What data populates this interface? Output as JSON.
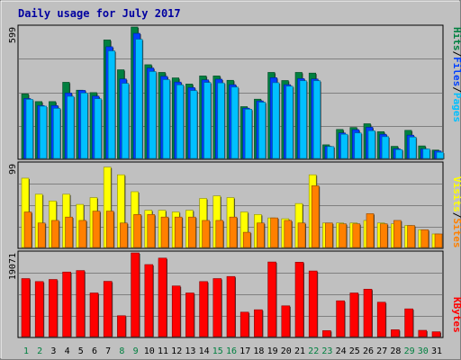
{
  "chart_data": [
    {
      "type": "bar",
      "title": "Daily usage for July 2017",
      "categories": [
        "1",
        "2",
        "3",
        "4",
        "5",
        "6",
        "7",
        "8",
        "9",
        "10",
        "11",
        "12",
        "13",
        "14",
        "15",
        "16",
        "17",
        "18",
        "19",
        "20",
        "21",
        "22",
        "23",
        "24",
        "25",
        "26",
        "27",
        "28",
        "29",
        "30",
        "31"
      ],
      "weekend_days": [
        "1",
        "2",
        "8",
        "9",
        "15",
        "16",
        "22",
        "23",
        "29",
        "30"
      ],
      "ylabel": [
        "Pages",
        "Files",
        "Hits"
      ],
      "ymax_label": "599",
      "ylim": [
        0,
        599
      ],
      "series": [
        {
          "name": "Hits",
          "color": "#008040",
          "values": [
            294,
            259,
            259,
            347,
            311,
            300,
            540,
            404,
            599,
            427,
            392,
            367,
            339,
            376,
            376,
            356,
            236,
            270,
            392,
            355,
            392,
            389,
            62,
            132,
            141,
            158,
            122,
            55,
            128,
            57,
            38
          ]
        },
        {
          "name": "Files",
          "color": "#0040ff",
          "values": [
            273,
            241,
            241,
            298,
            310,
            284,
            509,
            362,
            570,
            412,
            374,
            348,
            323,
            358,
            361,
            336,
            229,
            262,
            368,
            336,
            364,
            362,
            55,
            116,
            131,
            142,
            110,
            44,
            106,
            43,
            34
          ]
        },
        {
          "name": "Pages",
          "color": "#00c0ff",
          "values": [
            269,
            238,
            228,
            283,
            298,
            272,
            490,
            342,
            543,
            396,
            359,
            335,
            309,
            346,
            344,
            325,
            224,
            256,
            345,
            329,
            354,
            354,
            54,
            110,
            116,
            126,
            99,
            40,
            97,
            43,
            28
          ]
        }
      ]
    },
    {
      "type": "bar",
      "categories": [
        "1",
        "2",
        "3",
        "4",
        "5",
        "6",
        "7",
        "8",
        "9",
        "10",
        "11",
        "12",
        "13",
        "14",
        "15",
        "16",
        "17",
        "18",
        "19",
        "20",
        "21",
        "22",
        "23",
        "24",
        "25",
        "26",
        "27",
        "28",
        "29",
        "30",
        "31"
      ],
      "ylabel": [
        "Sites",
        "Visits"
      ],
      "ymax_label": "99",
      "ylim": [
        0,
        99
      ],
      "series": [
        {
          "name": "Visits",
          "color": "#ffff00",
          "values": [
            82,
            63,
            55,
            63,
            51,
            59,
            95,
            86,
            66,
            44,
            44,
            42,
            44,
            58,
            61,
            59,
            42,
            39,
            35,
            34,
            52,
            86,
            29,
            29,
            29,
            32,
            29,
            28,
            26,
            21,
            16
          ]
        },
        {
          "name": "Sites",
          "color": "#ff8000",
          "values": [
            42,
            29,
            32,
            36,
            32,
            43,
            43,
            29,
            39,
            39,
            36,
            36,
            36,
            32,
            32,
            36,
            18,
            29,
            35,
            32,
            29,
            73,
            29,
            28,
            28,
            40,
            28,
            32,
            26,
            21,
            16
          ]
        }
      ]
    },
    {
      "type": "bar",
      "categories": [
        "1",
        "2",
        "3",
        "4",
        "5",
        "6",
        "7",
        "8",
        "9",
        "10",
        "11",
        "12",
        "13",
        "14",
        "15",
        "16",
        "17",
        "18",
        "19",
        "20",
        "21",
        "22",
        "23",
        "24",
        "25",
        "26",
        "27",
        "28",
        "29",
        "30",
        "31"
      ],
      "ylabel": [
        "KBytes"
      ],
      "ymax_label": "19071",
      "ylim": [
        0,
        19071
      ],
      "series": [
        {
          "name": "KBytes",
          "color": "#ff0000",
          "values": [
            13223,
            12542,
            13018,
            14715,
            15051,
            9943,
            12596,
            4760,
            19071,
            16411,
            17888,
            11541,
            9943,
            12542,
            13223,
            13694,
            5574,
            6118,
            17004,
            7015,
            16955,
            14955,
            1359,
            8159,
            9943,
            10808,
            7839,
            1564,
            6323,
            1432,
            1100
          ]
        }
      ]
    }
  ]
}
